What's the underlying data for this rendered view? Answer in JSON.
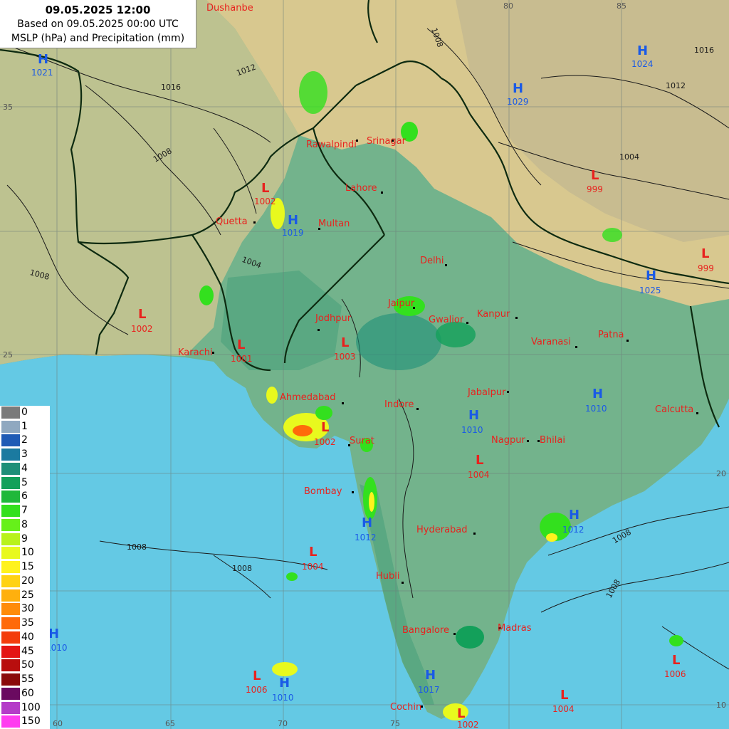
{
  "title": {
    "datetime": "09.05.2025 12:00",
    "based_on": "Based on 09.05.2025 00:00 UTC",
    "variables": "MSLP (hPa) and Precipitation (mm)"
  },
  "colors": {
    "sea": "#64c9e4",
    "lowland": "#5aa882",
    "plain": "#73b38c",
    "upland": "#bdc290",
    "mountain": "#d8c88f",
    "high_mountain": "#c8bc90",
    "high_pressure": "#1a5ae6",
    "low_pressure": "#e8221e",
    "city": "#e8221e",
    "border": "#0d2a10",
    "isobar": "#1a1a1a"
  },
  "grid": {
    "lon_labels": [
      "60",
      "65",
      "70",
      "75",
      "80",
      "85"
    ],
    "lat_labels": [
      "35",
      "25",
      "20",
      "10"
    ]
  },
  "cities": [
    {
      "name": "Dushanbe"
    },
    {
      "name": "Rawalpindi"
    },
    {
      "name": "Srinagar"
    },
    {
      "name": "Lahore"
    },
    {
      "name": "Quetta"
    },
    {
      "name": "Multan"
    },
    {
      "name": "Delhi"
    },
    {
      "name": "Jaipur"
    },
    {
      "name": "Jodhpur"
    },
    {
      "name": "Gwalior"
    },
    {
      "name": "Kanpur"
    },
    {
      "name": "Varanasi"
    },
    {
      "name": "Patna"
    },
    {
      "name": "Karachi"
    },
    {
      "name": "Ahmedabad"
    },
    {
      "name": "Indore"
    },
    {
      "name": "Jabalpur"
    },
    {
      "name": "Calcutta"
    },
    {
      "name": "Surat"
    },
    {
      "name": "Nagpur"
    },
    {
      "name": "Bhilai"
    },
    {
      "name": "Bombay"
    },
    {
      "name": "Hyderabad"
    },
    {
      "name": "Hubli"
    },
    {
      "name": "Bangalore"
    },
    {
      "name": "Madras"
    },
    {
      "name": "Cochin"
    }
  ],
  "pressure_centers": [
    {
      "type": "H",
      "value": "1021"
    },
    {
      "type": "H",
      "value": "1024"
    },
    {
      "type": "H",
      "value": "1029"
    },
    {
      "type": "L",
      "value": "999"
    },
    {
      "type": "L",
      "value": "1002"
    },
    {
      "type": "H",
      "value": "1019"
    },
    {
      "type": "L",
      "value": "999"
    },
    {
      "type": "H",
      "value": "1025"
    },
    {
      "type": "L",
      "value": "1002"
    },
    {
      "type": "L",
      "value": "1001"
    },
    {
      "type": "L",
      "value": "1003"
    },
    {
      "type": "H",
      "value": "1010"
    },
    {
      "type": "H",
      "value": "1010"
    },
    {
      "type": "L",
      "value": "1002"
    },
    {
      "type": "L",
      "value": "1004"
    },
    {
      "type": "H",
      "value": "1012"
    },
    {
      "type": "H",
      "value": "1012"
    },
    {
      "type": "L",
      "value": "1004"
    },
    {
      "type": "H",
      "value": "1010"
    },
    {
      "type": "L",
      "value": "1006"
    },
    {
      "type": "H",
      "value": "1010"
    },
    {
      "type": "H",
      "value": "1017"
    },
    {
      "type": "L",
      "value": "1004"
    },
    {
      "type": "L",
      "value": "1006"
    },
    {
      "type": "L",
      "value": "1002"
    }
  ],
  "isobar_labels": [
    "1008",
    "1012",
    "1016",
    "1008",
    "1004",
    "1008",
    "1012",
    "1016",
    "1004",
    "1008",
    "1008",
    "1008",
    "1008"
  ],
  "legend": [
    {
      "label": "0",
      "color": "#7a7a7a"
    },
    {
      "label": "1",
      "color": "#8fa8c0"
    },
    {
      "label": "2",
      "color": "#1f5bb5"
    },
    {
      "label": "3",
      "color": "#1b7aa0"
    },
    {
      "label": "4",
      "color": "#1e8f78"
    },
    {
      "label": "5",
      "color": "#13a05a"
    },
    {
      "label": "6",
      "color": "#1fb83a"
    },
    {
      "label": "7",
      "color": "#33e01e"
    },
    {
      "label": "8",
      "color": "#66f01a"
    },
    {
      "label": "9",
      "color": "#b8f21c"
    },
    {
      "label": "10",
      "color": "#e8f91e"
    },
    {
      "label": "15",
      "color": "#fff21e"
    },
    {
      "label": "20",
      "color": "#ffd214"
    },
    {
      "label": "25",
      "color": "#ffb00e"
    },
    {
      "label": "30",
      "color": "#ff8c0a"
    },
    {
      "label": "35",
      "color": "#ff6a0a"
    },
    {
      "label": "40",
      "color": "#f33c0c"
    },
    {
      "label": "45",
      "color": "#e41414"
    },
    {
      "label": "50",
      "color": "#b80e0e"
    },
    {
      "label": "55",
      "color": "#8a0a0a"
    },
    {
      "label": "60",
      "color": "#6a0a60"
    },
    {
      "label": "100",
      "color": "#b43cc8"
    },
    {
      "label": "150",
      "color": "#ff3cf0"
    }
  ]
}
